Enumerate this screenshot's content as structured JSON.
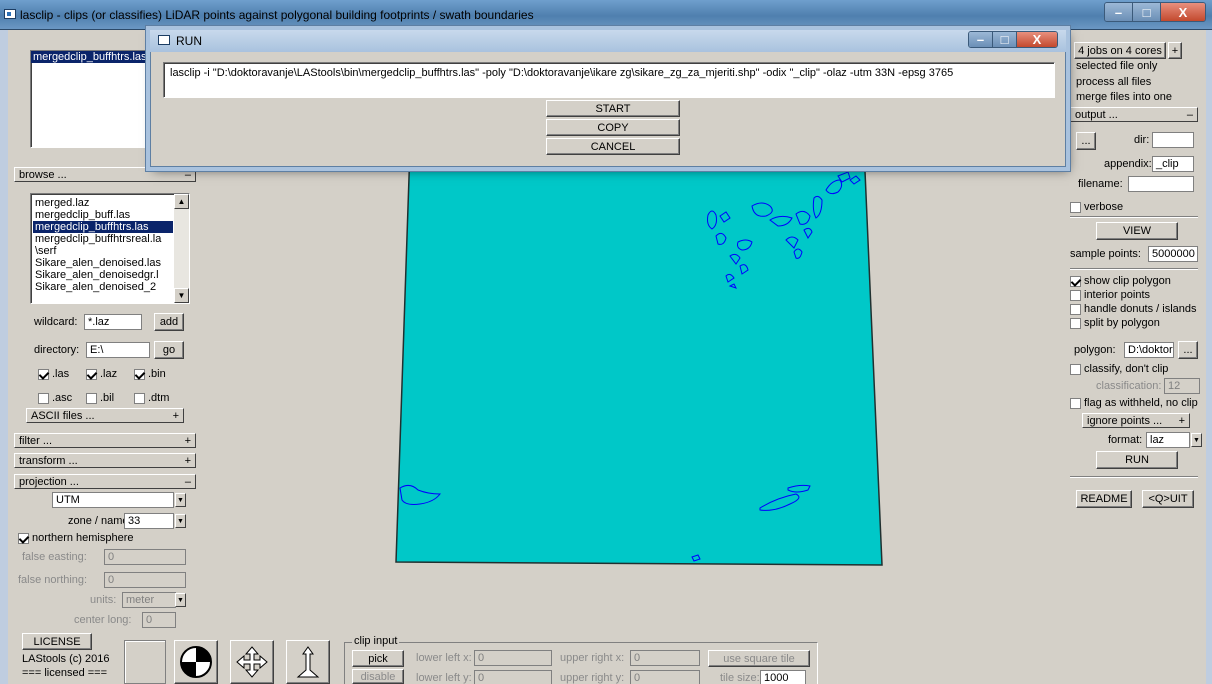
{
  "window": {
    "title": "lasclip - clips (or classifies) LiDAR points against polygonal building footprints / swath boundaries",
    "min": "–",
    "max": "□",
    "close": "X"
  },
  "run_dialog": {
    "title": "RUN",
    "command": "lasclip -i \"D:\\doktoravanje\\LAStools\\bin\\mergedclip_buffhtrs.las\" -poly \"D:\\doktoravanje\\ikare zg\\sikare_zg_za_mjeriti.shp\" -odix \"_clip\" -olaz -utm 33N -epsg 3765",
    "start": "START",
    "copy": "COPY",
    "cancel": "CANCEL"
  },
  "left": {
    "selected_files": [
      "mergedclip_buffhtrs.las"
    ],
    "browse": {
      "label": "browse ...",
      "toggle": "–"
    },
    "file_list": [
      "merged.laz",
      "mergedclip_buff.las",
      "mergedclip_buffhtrs.las",
      "mergedclip_buffhtrsreal.la",
      "\\serf",
      "Sikare_alen_denoised.las",
      "Sikare_alen_denoisedgr.l",
      "Sikare_alen_denoised_2"
    ],
    "wildcard_label": "wildcard:",
    "wildcard": "*.laz",
    "add": "add",
    "directory_label": "directory:",
    "directory": "E:\\",
    "go": "go",
    "ext1": [
      ".las",
      ".laz",
      ".bin"
    ],
    "ext2": [
      ".asc",
      ".bil",
      ".dtm"
    ],
    "ascii": "ASCII files ...",
    "filter": "filter ...",
    "transform": "transform ...",
    "projection": "projection ...",
    "plus": "+",
    "minus": "–",
    "proj_value": "UTM",
    "zone_label": "zone / name:",
    "zone": "33",
    "northern": "northern hemisphere",
    "false_easting_label": "false easting:",
    "false_easting": "0",
    "false_northing_label": "false northing:",
    "false_northing": "0",
    "units_label": "units:",
    "units": "meter",
    "center_long_label": "center long:",
    "center_long": "0"
  },
  "right": {
    "jobs": "4 jobs on 4 cores",
    "plus": "+",
    "minus": "–",
    "selected_only": "selected file only",
    "process_all": "process all files",
    "merge": "merge files into one",
    "output": "output ...",
    "browse_btn": "...",
    "dir_label": "dir:",
    "appendix_label": "appendix:",
    "appendix": "_clip",
    "filename_label": "filename:",
    "verbose": "verbose",
    "view": "VIEW",
    "sample_label": "sample points:",
    "sample": "5000000",
    "show_clip": "show clip polygon",
    "interior": "interior points",
    "donuts": "handle donuts / islands",
    "split": "split by polygon",
    "polygon_label": "polygon:",
    "polygon": "D:\\doktor",
    "classify": "classify, don't clip",
    "classification_label": "classification:",
    "classification": "12",
    "flag": "flag as withheld, no clip",
    "ignore": "ignore points ...",
    "format_label": "format:",
    "format": "laz",
    "run": "RUN",
    "readme": "README",
    "quit": "<Q>UIT"
  },
  "bottom": {
    "license": "LICENSE",
    "copyright": "LAStools (c) 2016",
    "licensed": "=== licensed ===",
    "clip_input": "clip input",
    "pick": "pick",
    "disable": "disable",
    "llx_label": "lower left x:",
    "llx": "0",
    "lly_label": "lower left y:",
    "lly": "0",
    "urx_label": "upper right x:",
    "urx": "0",
    "ury_label": "upper right y:",
    "ury": "0",
    "square": "use square tile",
    "tile_label": "tile size:",
    "tile": "1000"
  },
  "colors": {
    "point_area": "#00c8c8",
    "polygon": "#0000ff",
    "selection": "#0a246a"
  }
}
